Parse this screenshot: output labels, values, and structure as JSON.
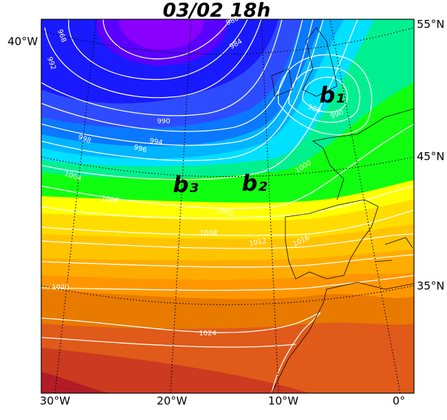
{
  "title": "03/02 18h",
  "lows": [
    "b₁",
    "b₂",
    "b₃"
  ],
  "bottom_labels": [
    "30°W",
    "20°W",
    "10°W",
    "0°"
  ],
  "left_labels": [
    "40°W"
  ],
  "right_labels": [
    "55°N",
    "45°N",
    "35°N"
  ],
  "isobar_labels": [
    "968",
    "992",
    "980",
    "984",
    "990",
    "994",
    "996",
    "998",
    "1004",
    "1006",
    "1002",
    "1008",
    "1012",
    "1016",
    "1020",
    "1024",
    "1000",
    "988",
    "990"
  ]
}
